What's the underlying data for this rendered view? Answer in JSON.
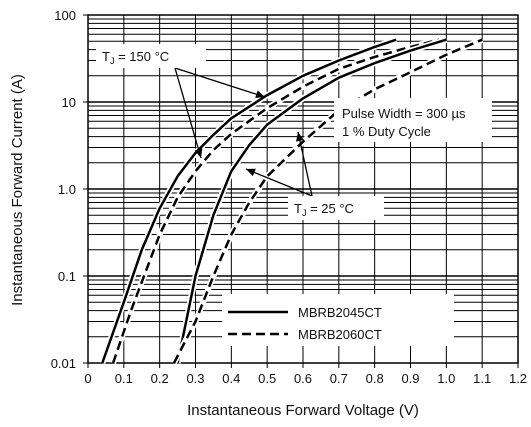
{
  "chart_data": {
    "type": "line",
    "xlabel": "Instantaneous Forward Voltage (V)",
    "ylabel": "Instantaneous Forward Current (A)",
    "xlim": [
      0,
      1.2
    ],
    "ylim": [
      0.01,
      100
    ],
    "y_scale": "log",
    "grid": true,
    "x_ticks": [
      "0",
      "0.1",
      "0.2",
      "0.3",
      "0.4",
      "0.5",
      "0.6",
      "0.7",
      "0.8",
      "0.9",
      "1.0",
      "1.1",
      "1.2"
    ],
    "y_ticks": [
      "0.01",
      "0.1",
      "1.0",
      "10",
      "100"
    ],
    "annotations": {
      "tj_high_prefix": "T",
      "tj_high_sub": "J",
      "tj_high_value": " = 150 °C",
      "tj_low_prefix": "T",
      "tj_low_sub": "J",
      "tj_low_value": " = 25 °C",
      "pulse_width": "Pulse Width = 300 µs",
      "duty_cycle": "1 % Duty Cycle"
    },
    "legend": {
      "position": "bottom-right",
      "entries": [
        {
          "label": "MBRB2045CT",
          "style": "solid"
        },
        {
          "label": "MBRB2060CT",
          "style": "dashed"
        }
      ]
    },
    "series": [
      {
        "label": "MBRB2045CT",
        "condition": "TJ = 150 °C",
        "style": "solid",
        "x": [
          0.04,
          0.1,
          0.15,
          0.2,
          0.25,
          0.3,
          0.35,
          0.4,
          0.5,
          0.6,
          0.7,
          0.8,
          0.86
        ],
        "y": [
          0.01,
          0.05,
          0.2,
          0.6,
          1.4,
          2.6,
          4.2,
          6.5,
          12,
          20,
          30,
          43,
          52
        ]
      },
      {
        "label": "MBRB2060CT",
        "condition": "TJ = 150 °C",
        "style": "dashed",
        "x": [
          0.07,
          0.12,
          0.2,
          0.25,
          0.3,
          0.35,
          0.4,
          0.5,
          0.6,
          0.7,
          0.8,
          0.9,
          0.98
        ],
        "y": [
          0.01,
          0.04,
          0.3,
          0.8,
          1.6,
          2.8,
          4.3,
          8.5,
          15,
          24,
          33,
          43,
          52
        ]
      },
      {
        "label": "MBRB2045CT",
        "condition": "TJ = 25 °C",
        "style": "solid",
        "x": [
          0.25,
          0.3,
          0.35,
          0.4,
          0.45,
          0.5,
          0.6,
          0.7,
          0.8,
          0.9,
          1.0
        ],
        "y": [
          0.01,
          0.1,
          0.5,
          1.6,
          3.2,
          5.5,
          11,
          19,
          28,
          39,
          52
        ]
      },
      {
        "label": "MBRB2060CT",
        "condition": "TJ = 25 °C",
        "style": "dashed",
        "x": [
          0.24,
          0.3,
          0.35,
          0.4,
          0.45,
          0.5,
          0.6,
          0.7,
          0.8,
          0.9,
          1.0,
          1.1
        ],
        "y": [
          0.01,
          0.03,
          0.1,
          0.3,
          0.7,
          1.4,
          3.5,
          8,
          14,
          22,
          35,
          52
        ]
      }
    ]
  }
}
